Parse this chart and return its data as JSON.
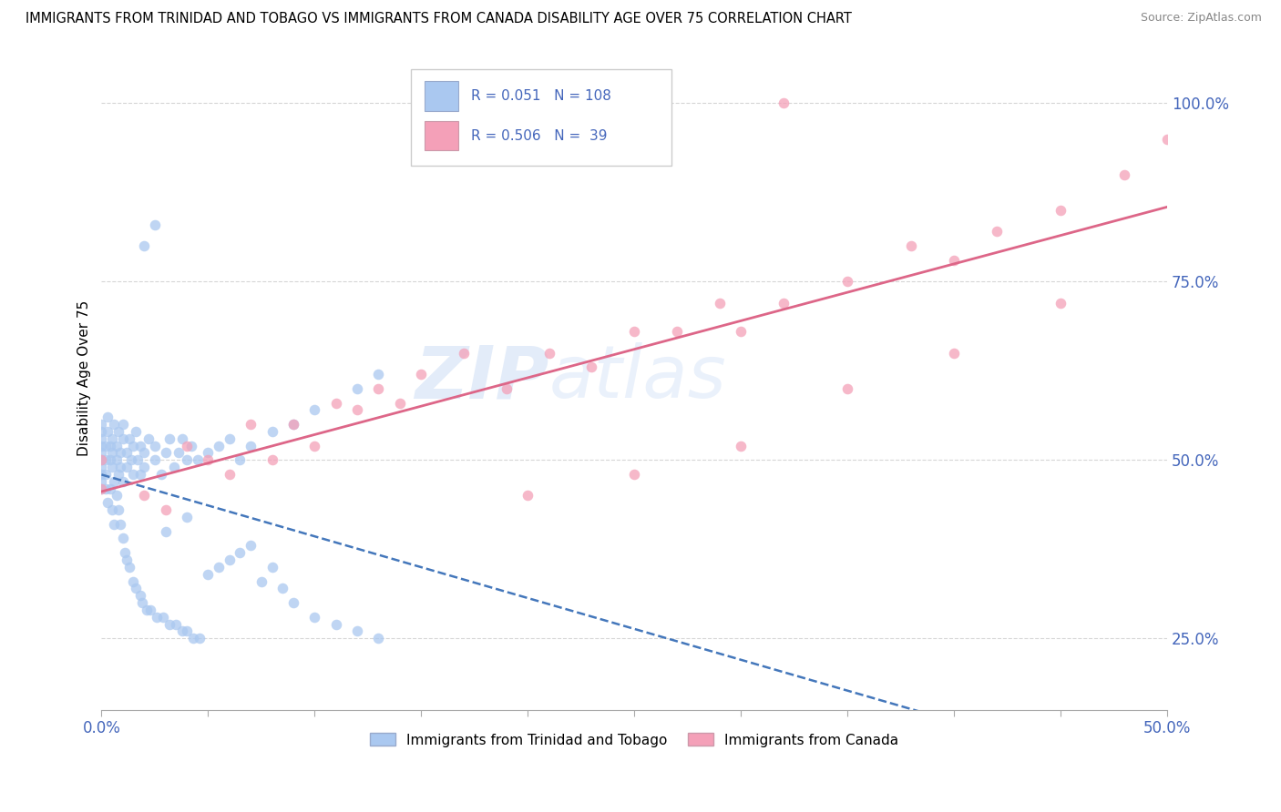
{
  "title": "IMMIGRANTS FROM TRINIDAD AND TOBAGO VS IMMIGRANTS FROM CANADA DISABILITY AGE OVER 75 CORRELATION CHART",
  "source": "Source: ZipAtlas.com",
  "ylabel": "Disability Age Over 75",
  "legend_bottom": [
    "Immigrants from Trinidad and Tobago",
    "Immigrants from Canada"
  ],
  "series1_color": "#aac8f0",
  "series2_color": "#f4a0b8",
  "series1_line_color": "#4477bb",
  "series2_line_color": "#dd6688",
  "watermark_zip": "ZIP",
  "watermark_atlas": "atlas",
  "xlim": [
    0.0,
    0.5
  ],
  "ylim": [
    0.15,
    1.08
  ],
  "R1": 0.051,
  "N1": 108,
  "R2": 0.506,
  "N2": 39,
  "tt_x": [
    0.0,
    0.0,
    0.0,
    0.0,
    0.0,
    0.0,
    0.0,
    0.0,
    0.0,
    0.0,
    0.002,
    0.002,
    0.002,
    0.002,
    0.003,
    0.003,
    0.004,
    0.004,
    0.005,
    0.005,
    0.005,
    0.006,
    0.006,
    0.007,
    0.007,
    0.008,
    0.008,
    0.009,
    0.009,
    0.01,
    0.01,
    0.01,
    0.012,
    0.012,
    0.013,
    0.014,
    0.015,
    0.015,
    0.016,
    0.017,
    0.018,
    0.018,
    0.02,
    0.02,
    0.022,
    0.025,
    0.025,
    0.028,
    0.03,
    0.032,
    0.034,
    0.036,
    0.038,
    0.04,
    0.042,
    0.045,
    0.05,
    0.055,
    0.06,
    0.065,
    0.07,
    0.08,
    0.09,
    0.1,
    0.12,
    0.13,
    0.02,
    0.025,
    0.03,
    0.04,
    0.003,
    0.004,
    0.005,
    0.006,
    0.007,
    0.008,
    0.009,
    0.01,
    0.011,
    0.012,
    0.013,
    0.015,
    0.016,
    0.018,
    0.019,
    0.021,
    0.023,
    0.026,
    0.029,
    0.032,
    0.035,
    0.038,
    0.04,
    0.043,
    0.046,
    0.05,
    0.055,
    0.06,
    0.065,
    0.07,
    0.075,
    0.08,
    0.085,
    0.09,
    0.1,
    0.11,
    0.12,
    0.13
  ],
  "tt_y": [
    0.5,
    0.52,
    0.48,
    0.54,
    0.46,
    0.51,
    0.49,
    0.53,
    0.47,
    0.55,
    0.5,
    0.52,
    0.48,
    0.46,
    0.54,
    0.56,
    0.52,
    0.5,
    0.53,
    0.51,
    0.49,
    0.55,
    0.47,
    0.52,
    0.5,
    0.48,
    0.54,
    0.51,
    0.49,
    0.53,
    0.55,
    0.47,
    0.51,
    0.49,
    0.53,
    0.5,
    0.52,
    0.48,
    0.54,
    0.5,
    0.52,
    0.48,
    0.51,
    0.49,
    0.53,
    0.5,
    0.52,
    0.48,
    0.51,
    0.53,
    0.49,
    0.51,
    0.53,
    0.5,
    0.52,
    0.5,
    0.51,
    0.52,
    0.53,
    0.5,
    0.52,
    0.54,
    0.55,
    0.57,
    0.6,
    0.62,
    0.8,
    0.83,
    0.4,
    0.42,
    0.44,
    0.46,
    0.43,
    0.41,
    0.45,
    0.43,
    0.41,
    0.39,
    0.37,
    0.36,
    0.35,
    0.33,
    0.32,
    0.31,
    0.3,
    0.29,
    0.29,
    0.28,
    0.28,
    0.27,
    0.27,
    0.26,
    0.26,
    0.25,
    0.25,
    0.34,
    0.35,
    0.36,
    0.37,
    0.38,
    0.33,
    0.35,
    0.32,
    0.3,
    0.28,
    0.27,
    0.26,
    0.25
  ],
  "ca_x": [
    0.0,
    0.0,
    0.02,
    0.03,
    0.04,
    0.05,
    0.06,
    0.07,
    0.08,
    0.09,
    0.1,
    0.11,
    0.12,
    0.13,
    0.14,
    0.15,
    0.17,
    0.19,
    0.21,
    0.23,
    0.25,
    0.27,
    0.29,
    0.3,
    0.32,
    0.35,
    0.38,
    0.4,
    0.42,
    0.45,
    0.48,
    0.5,
    0.2,
    0.25,
    0.3,
    0.35,
    0.4,
    0.45,
    0.32
  ],
  "ca_y": [
    0.46,
    0.5,
    0.45,
    0.43,
    0.52,
    0.5,
    0.48,
    0.55,
    0.5,
    0.55,
    0.52,
    0.58,
    0.57,
    0.6,
    0.58,
    0.62,
    0.65,
    0.6,
    0.65,
    0.63,
    0.68,
    0.68,
    0.72,
    0.68,
    0.72,
    0.75,
    0.8,
    0.78,
    0.82,
    0.85,
    0.9,
    0.95,
    0.45,
    0.48,
    0.52,
    0.6,
    0.65,
    0.72,
    1.0
  ]
}
